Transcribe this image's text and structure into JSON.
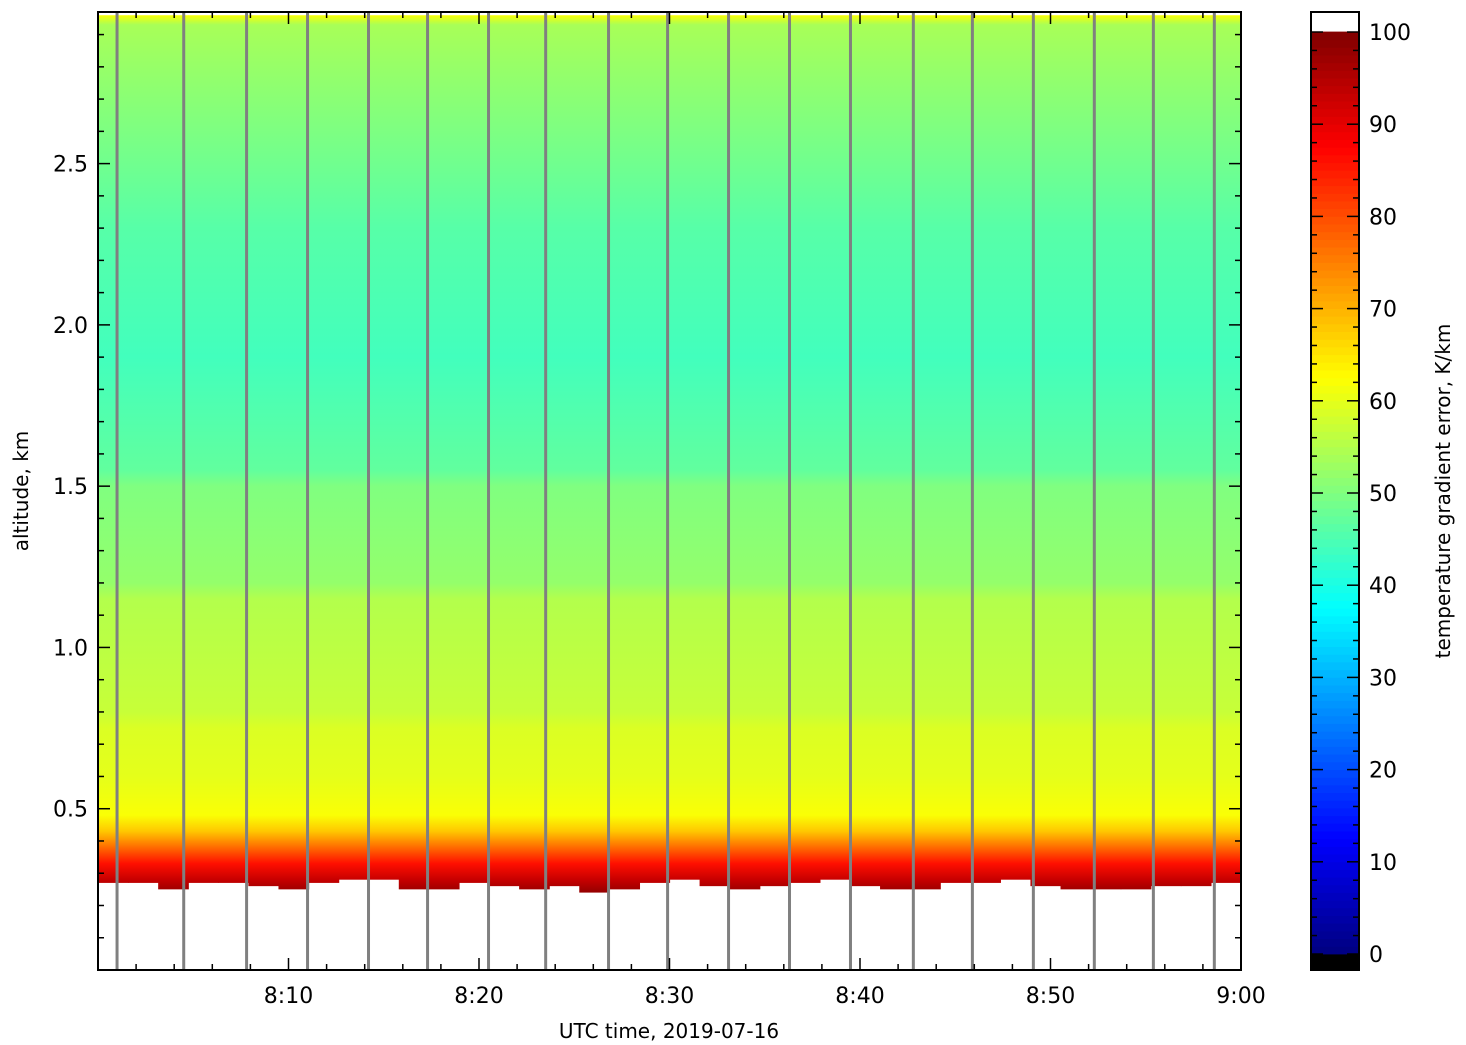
{
  "chart_data": {
    "type": "heatmap",
    "title": "",
    "xlabel": "UTC time,  2019-07-16",
    "ylabel": "altitude, km",
    "colorbar_label": "temperature gradient error, K/km",
    "colormap": "jet",
    "x_ticks": [
      "8:10",
      "8:20",
      "8:30",
      "8:40",
      "8:50",
      "9:00"
    ],
    "x_tick_minutes": [
      10,
      20,
      30,
      40,
      50,
      60
    ],
    "xlim_minutes_after_8": [
      0,
      60
    ],
    "y_ticks": [
      "0.5",
      "1.0",
      "1.5",
      "2.0",
      "2.5"
    ],
    "y_tick_values": [
      0.5,
      1.0,
      1.5,
      2.0,
      2.5
    ],
    "ylim": [
      0.0,
      2.97
    ],
    "colorbar_ticks": [
      "0",
      "10",
      "20",
      "30",
      "40",
      "50",
      "60",
      "70",
      "80",
      "90",
      "100"
    ],
    "clim": [
      0,
      100
    ],
    "profile": [
      {
        "alt": 0.24,
        "value": 98
      },
      {
        "alt": 0.28,
        "value": 93
      },
      {
        "alt": 0.33,
        "value": 86
      },
      {
        "alt": 0.38,
        "value": 77
      },
      {
        "alt": 0.43,
        "value": 68
      },
      {
        "alt": 0.48,
        "value": 62
      },
      {
        "alt": 0.6,
        "value": 60
      },
      {
        "alt": 0.75,
        "value": 59
      },
      {
        "alt": 0.8,
        "value": 57
      },
      {
        "alt": 1.15,
        "value": 55
      },
      {
        "alt": 1.2,
        "value": 52
      },
      {
        "alt": 1.5,
        "value": 50
      },
      {
        "alt": 1.55,
        "value": 47
      },
      {
        "alt": 1.9,
        "value": 44
      },
      {
        "alt": 2.3,
        "value": 46
      },
      {
        "alt": 2.7,
        "value": 51
      },
      {
        "alt": 2.93,
        "value": 54
      },
      {
        "alt": 2.96,
        "value": 62
      }
    ],
    "lower_edge_km": [
      0.27,
      0.27,
      0.25,
      0.27,
      0.27,
      0.26,
      0.25,
      0.27,
      0.28,
      0.28,
      0.25,
      0.25,
      0.27,
      0.26,
      0.25,
      0.26,
      0.24,
      0.25,
      0.27,
      0.28,
      0.26,
      0.25,
      0.26,
      0.27,
      0.28,
      0.26,
      0.25,
      0.25,
      0.27,
      0.27,
      0.28,
      0.26,
      0.25,
      0.25,
      0.25,
      0.26,
      0.26,
      0.27
    ],
    "gap_lines_minutes": [
      1.0,
      4.5,
      7.8,
      11.0,
      14.2,
      17.3,
      20.5,
      23.5,
      26.8,
      29.9,
      33.1,
      36.3,
      39.5,
      42.8,
      45.9,
      49.1,
      52.3,
      55.4,
      58.6
    ],
    "gap_line_color": "#808080",
    "frame_color": "#000000"
  }
}
